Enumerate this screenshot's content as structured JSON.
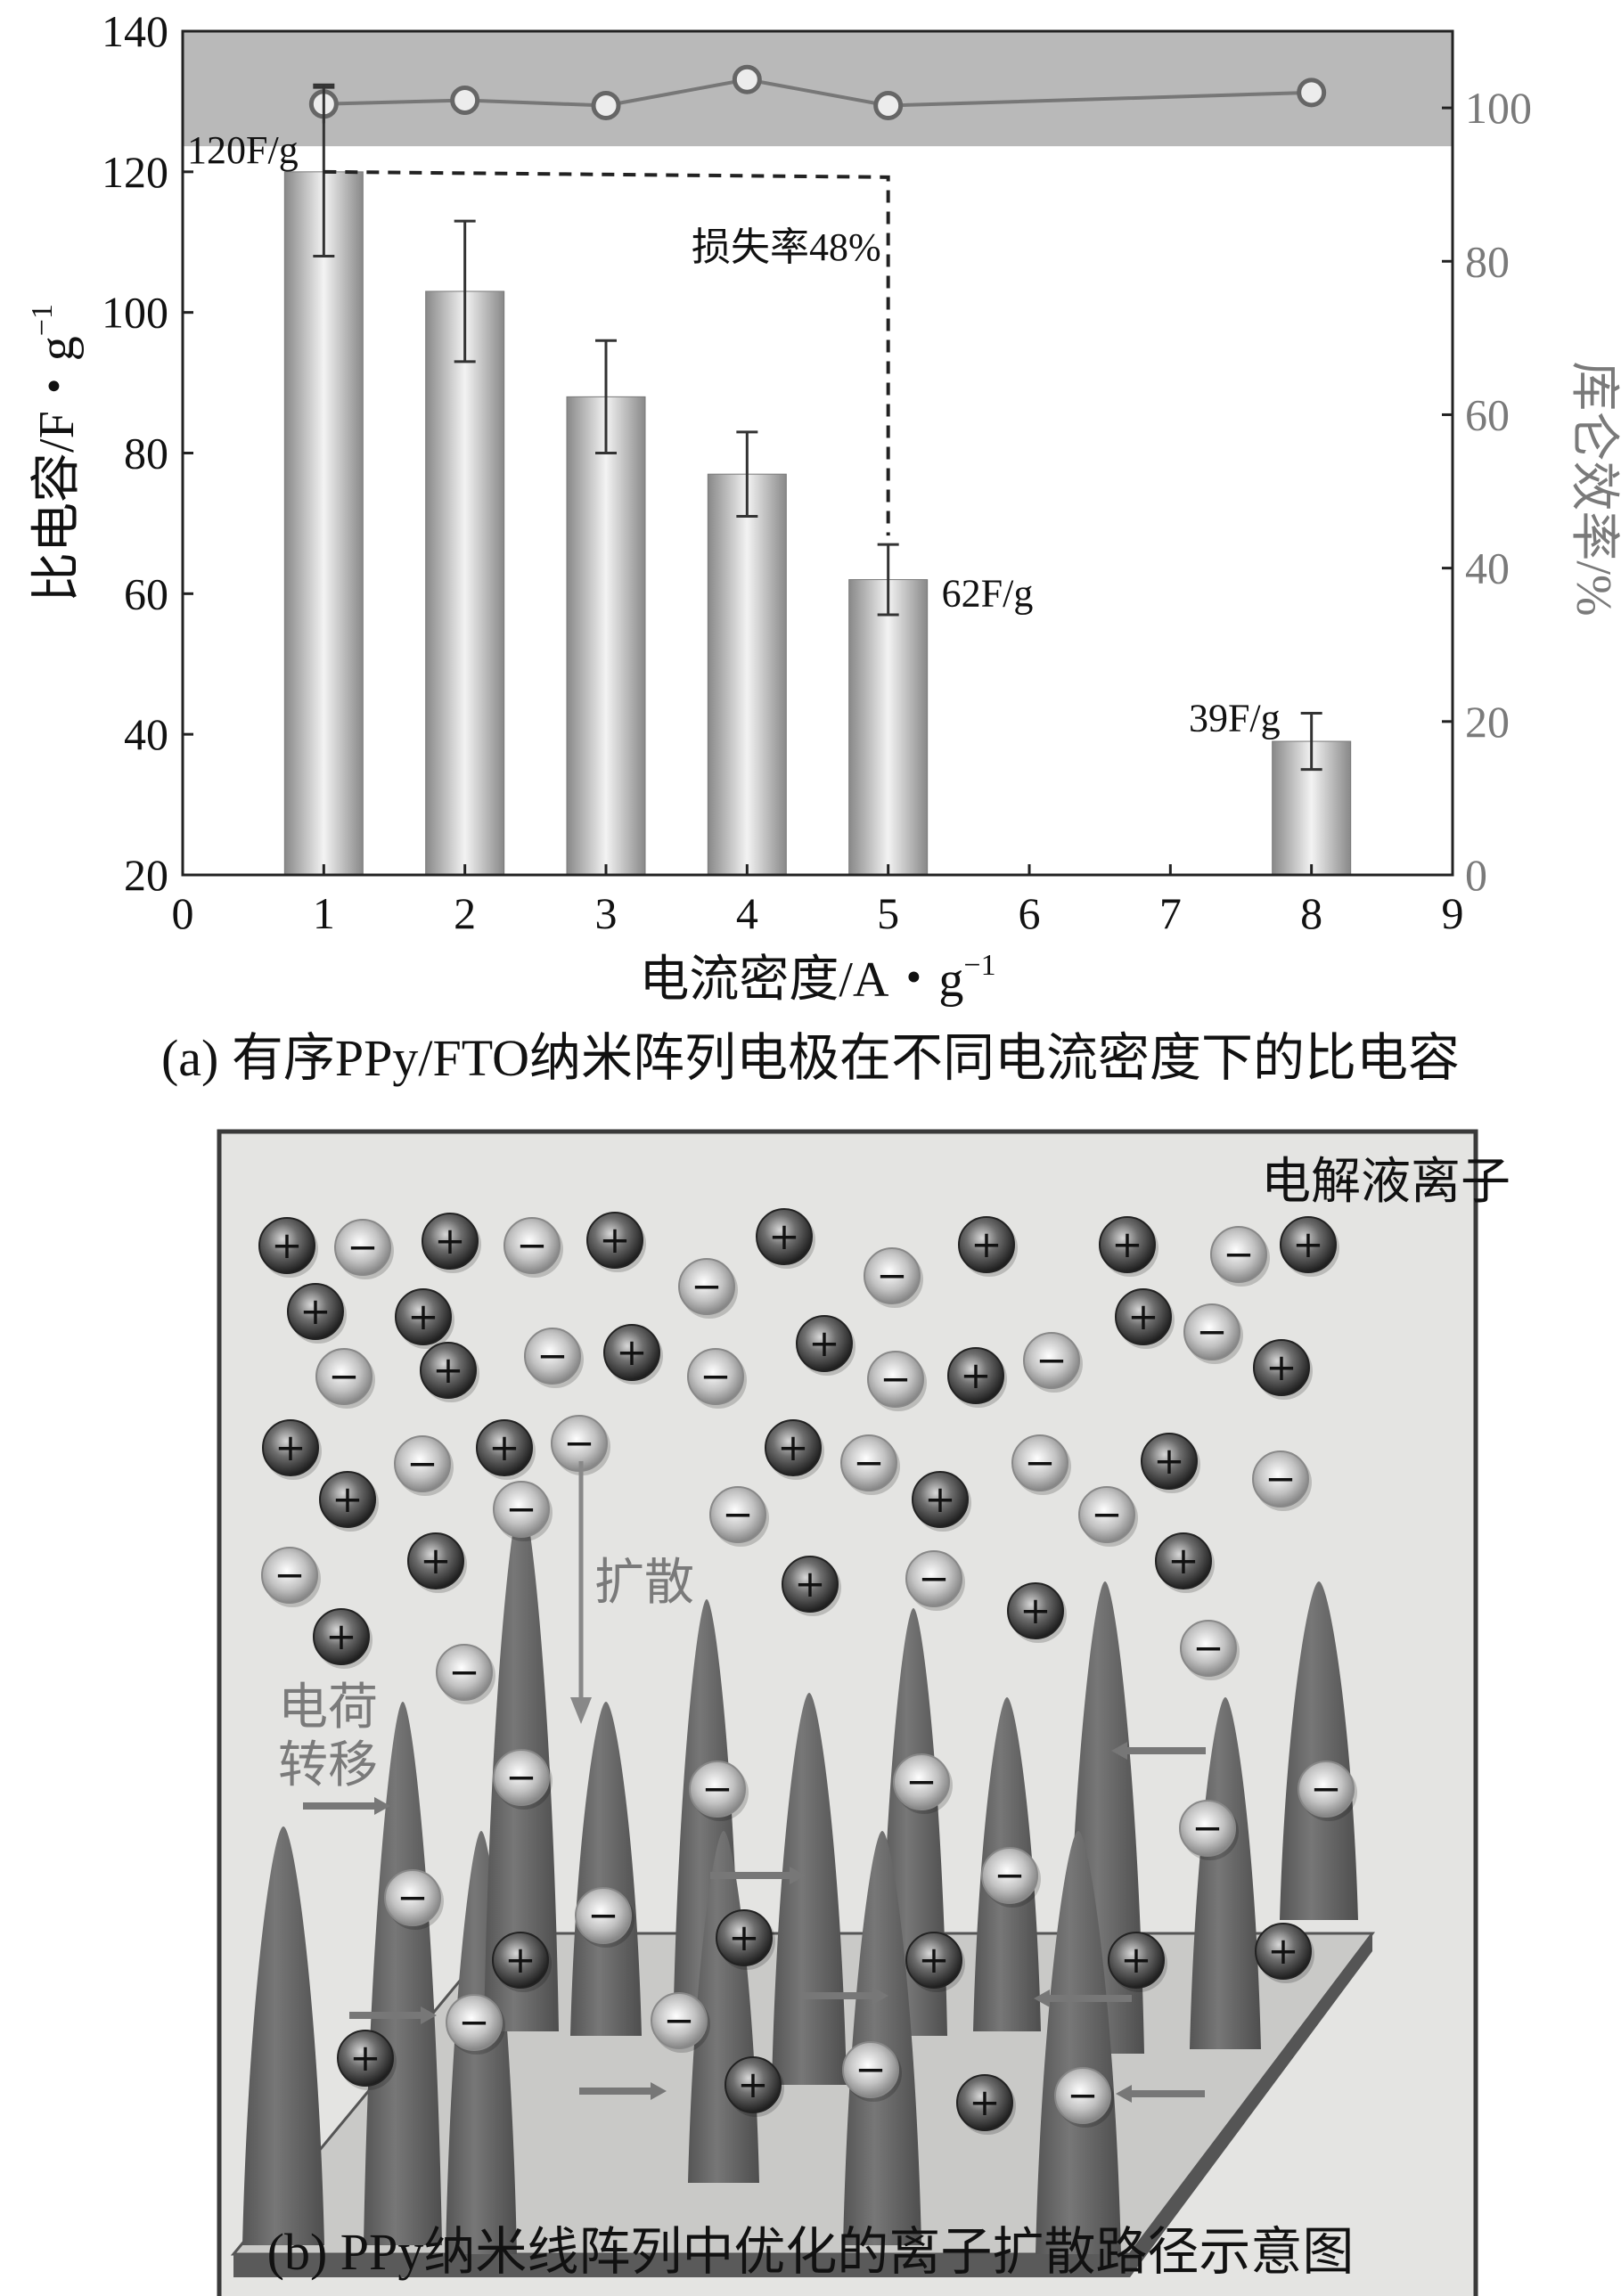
{
  "chart_data": {
    "type": "bar",
    "xlabel_main": "电流密度/A・g",
    "xlabel_exp": "−1",
    "ylabel_main": "比电容/F・g",
    "ylabel_exp": "−1",
    "y2label": "库仑效率/%",
    "xlim": [
      0,
      9
    ],
    "ylim": [
      20,
      140
    ],
    "y2lim": [
      0,
      110
    ],
    "x_ticks": [
      0,
      1,
      2,
      3,
      4,
      5,
      6,
      7,
      8,
      9
    ],
    "y_ticks": [
      20,
      40,
      60,
      80,
      100,
      120,
      140
    ],
    "y2_ticks": [
      0,
      20,
      40,
      60,
      80,
      100
    ],
    "bars": [
      {
        "x": 1,
        "value": 120,
        "err_low": 108,
        "err_high": 132
      },
      {
        "x": 2,
        "value": 103,
        "err_low": 93,
        "err_high": 113
      },
      {
        "x": 3,
        "value": 88,
        "err_low": 80,
        "err_high": 96
      },
      {
        "x": 4,
        "value": 77,
        "err_low": 71,
        "err_high": 83
      },
      {
        "x": 5,
        "value": 62,
        "err_low": 57,
        "err_high": 67
      },
      {
        "x": 8,
        "value": 39,
        "err_low": 35,
        "err_high": 43
      }
    ],
    "coulombic_efficiency": {
      "x": [
        1,
        2,
        3,
        4,
        5,
        8
      ],
      "values": [
        100.5,
        101,
        100.3,
        103.7,
        100.3,
        102
      ]
    },
    "annotations": {
      "bar1_label": "120F/g",
      "bar5_label": "62F/g",
      "bar8_label": "39F/g",
      "loss_label": "损失率48%"
    },
    "colors": {
      "bar_edge": "#8a8a8a",
      "bar_center": "#f2f2f2",
      "band": "#b9b9b9",
      "line": "#777777",
      "axis": "#222222",
      "right_axis": "#7a7a7a"
    }
  },
  "captions": {
    "a": "(a) 有序PPy/FTO纳米阵列电极在不同电流密度下的比电容",
    "b": "(b) PPy纳米线阵列中优化的离子扩散路径示意图"
  },
  "diagram": {
    "electrolyte_label": "电解液离子",
    "diffusion_label": "扩散",
    "charge_transfer_line1": "电荷",
    "charge_transfer_line2": "转移",
    "plus_symbol": "+",
    "minus_symbol": "−",
    "colors": {
      "background": "#e4e4e2",
      "frame": "#3a3a3a",
      "spike": "#6a6a6a",
      "substrate": "#c9c9c7",
      "label_gray": "#7a7a7a"
    }
  }
}
